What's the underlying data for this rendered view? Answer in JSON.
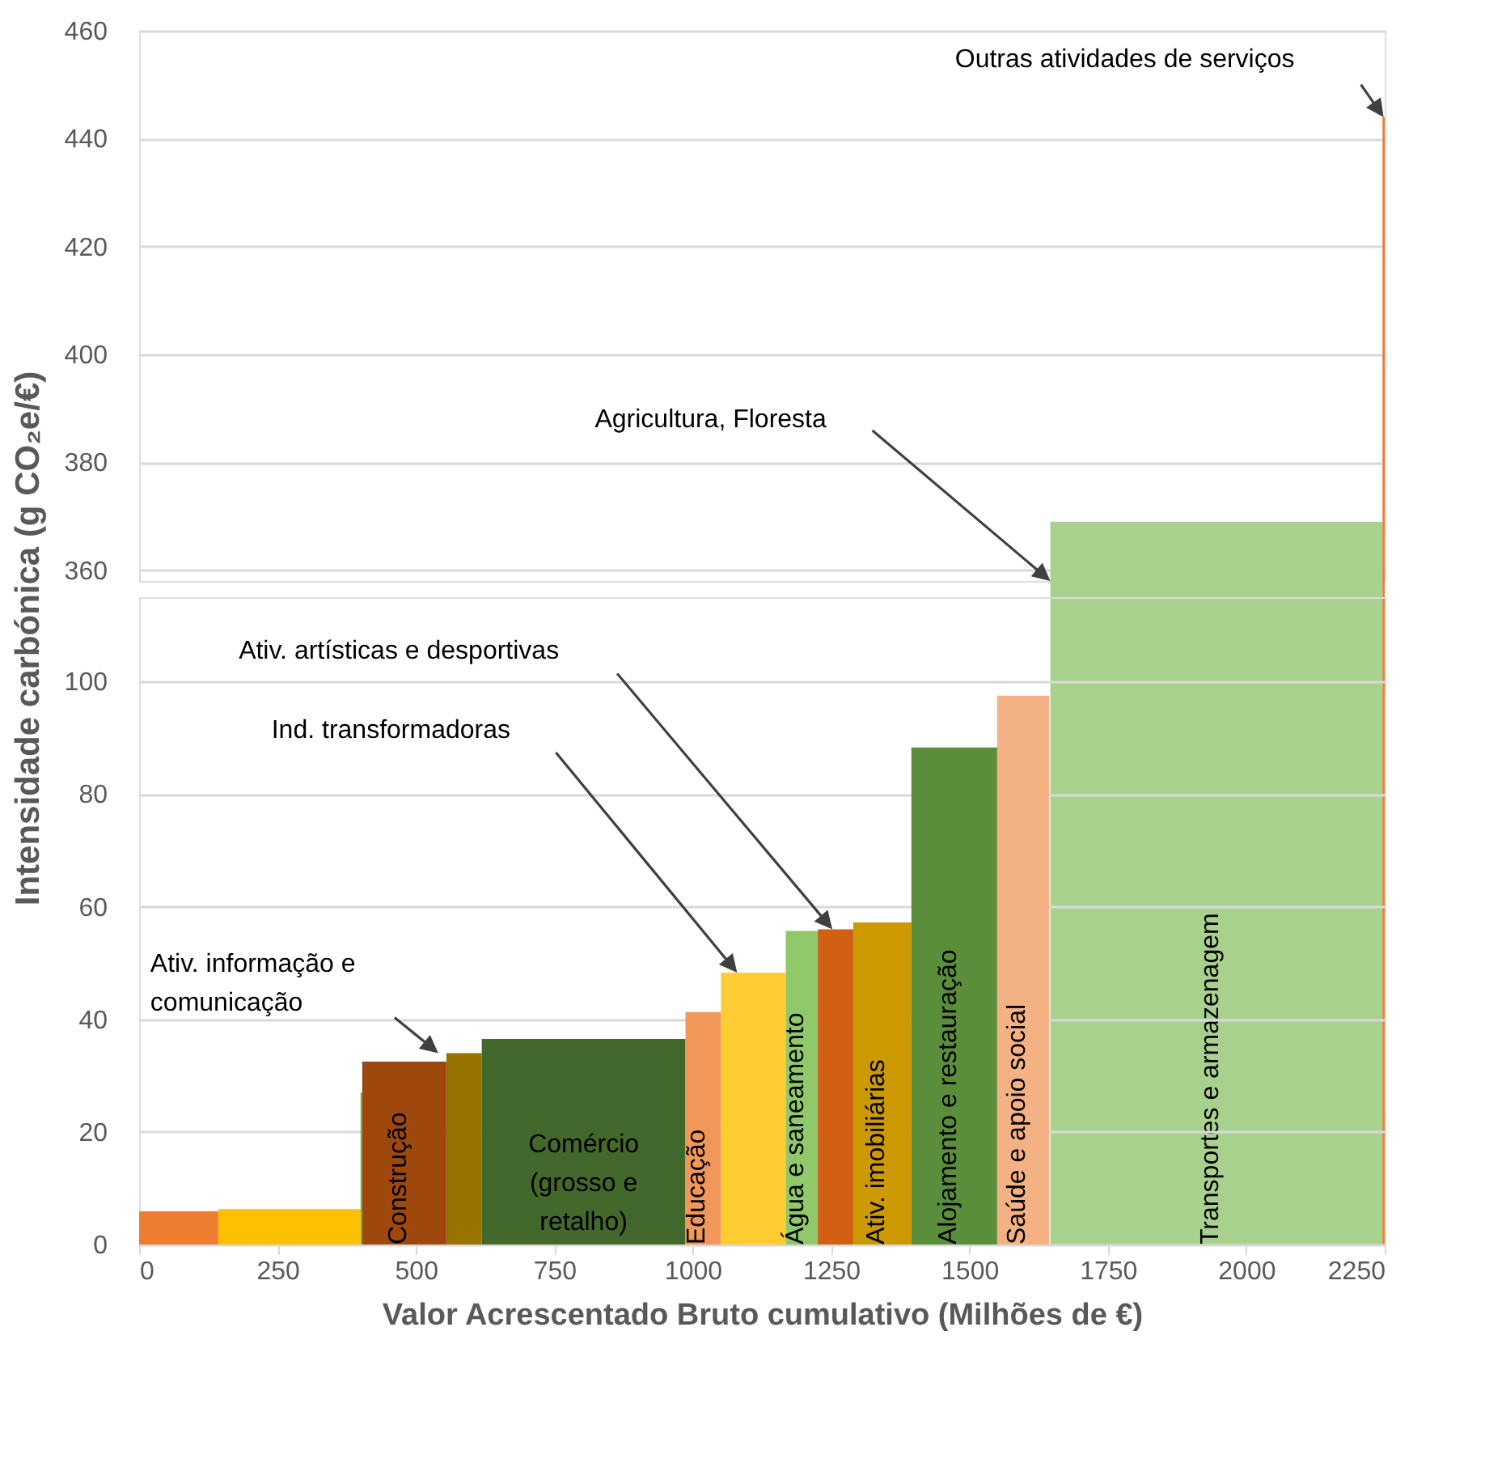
{
  "chart_data": [
    {
      "type": "histogram",
      "bins": [
        1646,
        2246,
        2250
      ],
      "values": [
        369,
        444
      ],
      "colors": [
        "#a9d18e",
        "#ed7d31"
      ],
      "xlim": [
        0,
        2250
      ],
      "ylim": [
        358,
        460
      ],
      "yticks": [
        360,
        380,
        400,
        420,
        440,
        460
      ],
      "tick_labels": "y",
      "grid": "y",
      "annotations": [
        "Agricultura, Floresta",
        "Outras atividades de serviços",
        "Transportes e armazenagem"
      ]
    },
    {
      "type": "histogram",
      "bins": [
        0,
        143,
        400,
        403,
        555,
        619,
        987,
        1051,
        1168,
        1226,
        1290,
        1395,
        1550,
        1644
      ],
      "values": [
        5.9,
        6.3,
        27,
        32.5,
        34,
        36.5,
        41.3,
        48.3,
        55.7,
        56,
        57.2,
        88.3,
        97.5
      ],
      "colors": [
        "#ed7d31",
        "#ffc000",
        "#70ad47",
        "#9e480e",
        "#997300",
        "#43682b",
        "#f1975a",
        "#ffcd33",
        "#8fc96a",
        "#d26012",
        "#cc9900",
        "#5b8e3a",
        "#f4b183"
      ],
      "xlim": [
        0,
        2250
      ],
      "xticks": [
        0,
        250,
        500,
        750,
        1000,
        1250,
        1500,
        1750,
        2000,
        2250
      ],
      "ylim": [
        0,
        115
      ],
      "yticks": [
        0,
        20,
        40,
        60,
        80,
        100
      ],
      "grid": "y",
      "xlabel": "Valor Acrescentado Bruto cumulativo (Milhões de €)",
      "ylabel": "Intensidade carbónica (g CO₂e/€)",
      "annotations": [
        "Ativ. informação e comunicação",
        "Ind. transformadoras",
        "Ativ. artísticas e desportivas",
        "Construção",
        "Comércio (grosso e retalho)",
        "Educação",
        "Água e saneamento",
        "Ativ. imobiliárias",
        "Alojamento e restauração",
        "Saúde e apoio social"
      ]
    }
  ]
}
